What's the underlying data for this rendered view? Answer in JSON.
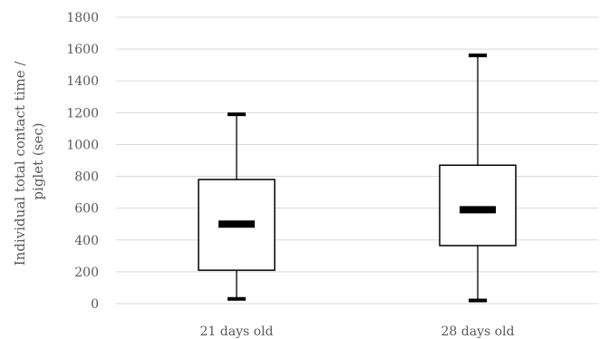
{
  "chart_data": {
    "type": "boxplot",
    "categories": [
      "21 days old",
      "28 days old"
    ],
    "boxes": [
      {
        "category": "21 days old",
        "min": 30,
        "q1": 210,
        "median": 500,
        "q3": 780,
        "max": 1190
      },
      {
        "category": "28 days old",
        "min": 20,
        "q1": 365,
        "median": 590,
        "q3": 870,
        "max": 1560
      }
    ],
    "ylabel_lines": [
      "Individual total contact time /",
      "piglet (sec)"
    ],
    "ylim": [
      0,
      1800
    ],
    "yticks": [
      "0",
      "200",
      "400",
      "600",
      "800",
      "1000",
      "1200",
      "1400",
      "1600",
      "1800"
    ],
    "grid": true,
    "colors": {
      "box_fill": "#ffffff",
      "line": "#000000",
      "grid": "#d9d9d9",
      "text": "#595959"
    }
  }
}
